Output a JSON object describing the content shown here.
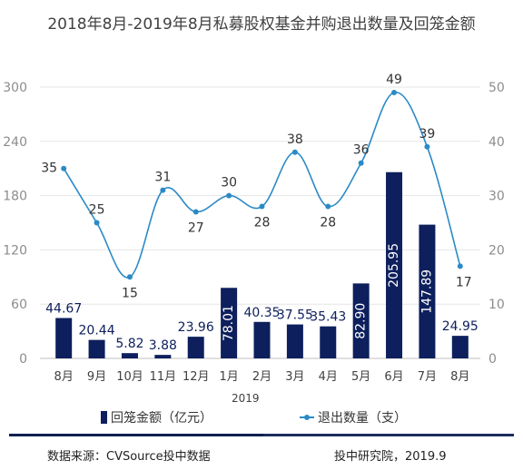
{
  "title": "2018年8月-2019年8月私募股权基金并购退出数量及回笼金额",
  "colors": {
    "bar": "#0d1f5c",
    "line": "#2b8ac6",
    "grid": "#e6e6e6",
    "axis_text": "#8c8c8c"
  },
  "chart_data": {
    "type": "bar+line",
    "categories": [
      "8月",
      "9月",
      "10月",
      "11月",
      "12月",
      "1月",
      "2月",
      "3月",
      "4月",
      "5月",
      "6月",
      "7月",
      "8月"
    ],
    "year_label": "2019",
    "y_left": {
      "ticks": [
        "0",
        "60",
        "120",
        "180",
        "240",
        "300"
      ],
      "ylim": [
        0,
        300
      ]
    },
    "y_right": {
      "ticks": [
        "0",
        "10",
        "20",
        "30",
        "40",
        "50"
      ],
      "ylim": [
        0,
        50
      ]
    },
    "series": [
      {
        "name": "回笼金额（亿元）",
        "type": "bar",
        "axis": "left",
        "values": [
          44.67,
          20.44,
          5.82,
          3.88,
          23.96,
          78.01,
          40.35,
          37.55,
          35.43,
          82.9,
          205.95,
          147.89,
          24.95
        ],
        "labels": [
          "44.67",
          "20.44",
          "5.82",
          "3.88",
          "23.96",
          "78.01",
          "40.35",
          "37.55",
          "35.43",
          "82.90",
          "205.95",
          "147.89",
          "24.95"
        ]
      },
      {
        "name": "退出数量（支）",
        "type": "line",
        "axis": "right",
        "values": [
          35,
          25,
          15,
          31,
          27,
          30,
          28,
          38,
          28,
          36,
          49,
          39,
          17
        ],
        "labels": [
          "35",
          "25",
          "15",
          "31",
          "27",
          "30",
          "28",
          "38",
          "28",
          "36",
          "49",
          "39",
          "17"
        ]
      }
    ],
    "grid": true,
    "legend": "bottom"
  },
  "footer": {
    "source": "数据来源：CVSource投中数据",
    "credit": "投中研究院，2019.9"
  }
}
